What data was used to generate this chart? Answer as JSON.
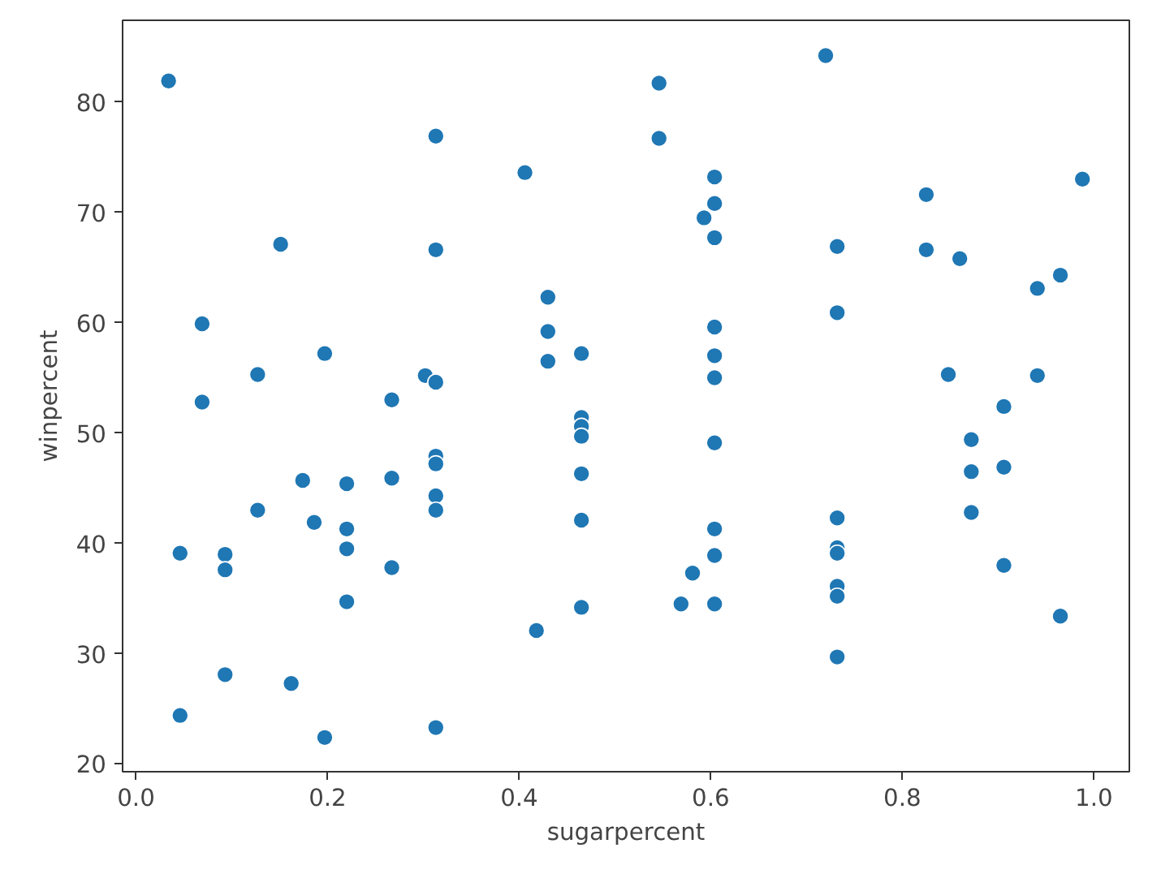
{
  "chart_data": {
    "type": "scatter",
    "xlabel": "sugarpercent",
    "ylabel": "winpercent",
    "marker": "circle",
    "grid": false,
    "xlim": [
      -0.014,
      1.037
    ],
    "ylim": [
      19.3,
      87.4
    ],
    "xticks": [
      {
        "value": 0,
        "label": "0.0"
      },
      {
        "value": 0.2,
        "label": "0.2"
      },
      {
        "value": 0.4,
        "label": "0.4"
      },
      {
        "value": 0.6,
        "label": "0.6"
      },
      {
        "value": 0.8,
        "label": "0.8"
      },
      {
        "value": 1,
        "label": "1.0"
      }
    ],
    "yticks": [
      20,
      30,
      40,
      50,
      60,
      70,
      80
    ],
    "x": [
      0.034,
      0.046,
      0.046,
      0.069,
      0.069,
      0.093,
      0.093,
      0.093,
      0.127,
      0.127,
      0.151,
      0.162,
      0.174,
      0.186,
      0.197,
      0.197,
      0.22,
      0.22,
      0.22,
      0.22,
      0.267,
      0.267,
      0.267,
      0.302,
      0.313,
      0.313,
      0.313,
      0.313,
      0.313,
      0.313,
      0.313,
      0.313,
      0.406,
      0.418,
      0.43,
      0.43,
      0.43,
      0.465,
      0.465,
      0.465,
      0.465,
      0.465,
      0.465,
      0.465,
      0.546,
      0.546,
      0.569,
      0.581,
      0.593,
      0.604,
      0.604,
      0.604,
      0.604,
      0.604,
      0.604,
      0.604,
      0.604,
      0.604,
      0.604,
      0.72,
      0.732,
      0.732,
      0.732,
      0.732,
      0.732,
      0.732,
      0.732,
      0.732,
      0.825,
      0.825,
      0.848,
      0.86,
      0.872,
      0.872,
      0.872,
      0.906,
      0.906,
      0.906,
      0.941,
      0.941,
      0.965,
      0.965,
      0.988
    ],
    "series": [
      {
        "color": "#1f77b4",
        "values": [
          81.9,
          39.1,
          24.4,
          59.9,
          52.8,
          39.0,
          37.6,
          28.1,
          55.3,
          43.0,
          67.1,
          27.3,
          45.7,
          41.9,
          57.2,
          22.4,
          45.4,
          41.3,
          39.5,
          34.7,
          53.0,
          45.9,
          37.8,
          55.2,
          76.9,
          66.6,
          54.6,
          47.9,
          47.2,
          44.3,
          43.0,
          23.3,
          73.6,
          32.1,
          62.3,
          59.2,
          56.5,
          57.2,
          51.4,
          50.6,
          49.7,
          46.3,
          42.1,
          34.2,
          81.7,
          76.7,
          34.5,
          37.3,
          69.5,
          73.2,
          70.8,
          67.7,
          59.6,
          57.0,
          55.0,
          49.1,
          41.3,
          38.9,
          34.5,
          84.2,
          66.9,
          60.9,
          42.3,
          39.6,
          39.1,
          36.1,
          35.2,
          29.7,
          71.6,
          66.6,
          55.3,
          65.8,
          49.4,
          46.5,
          42.8,
          52.4,
          46.9,
          38.0,
          63.1,
          55.2,
          64.3,
          33.4,
          73.0
        ]
      }
    ]
  }
}
